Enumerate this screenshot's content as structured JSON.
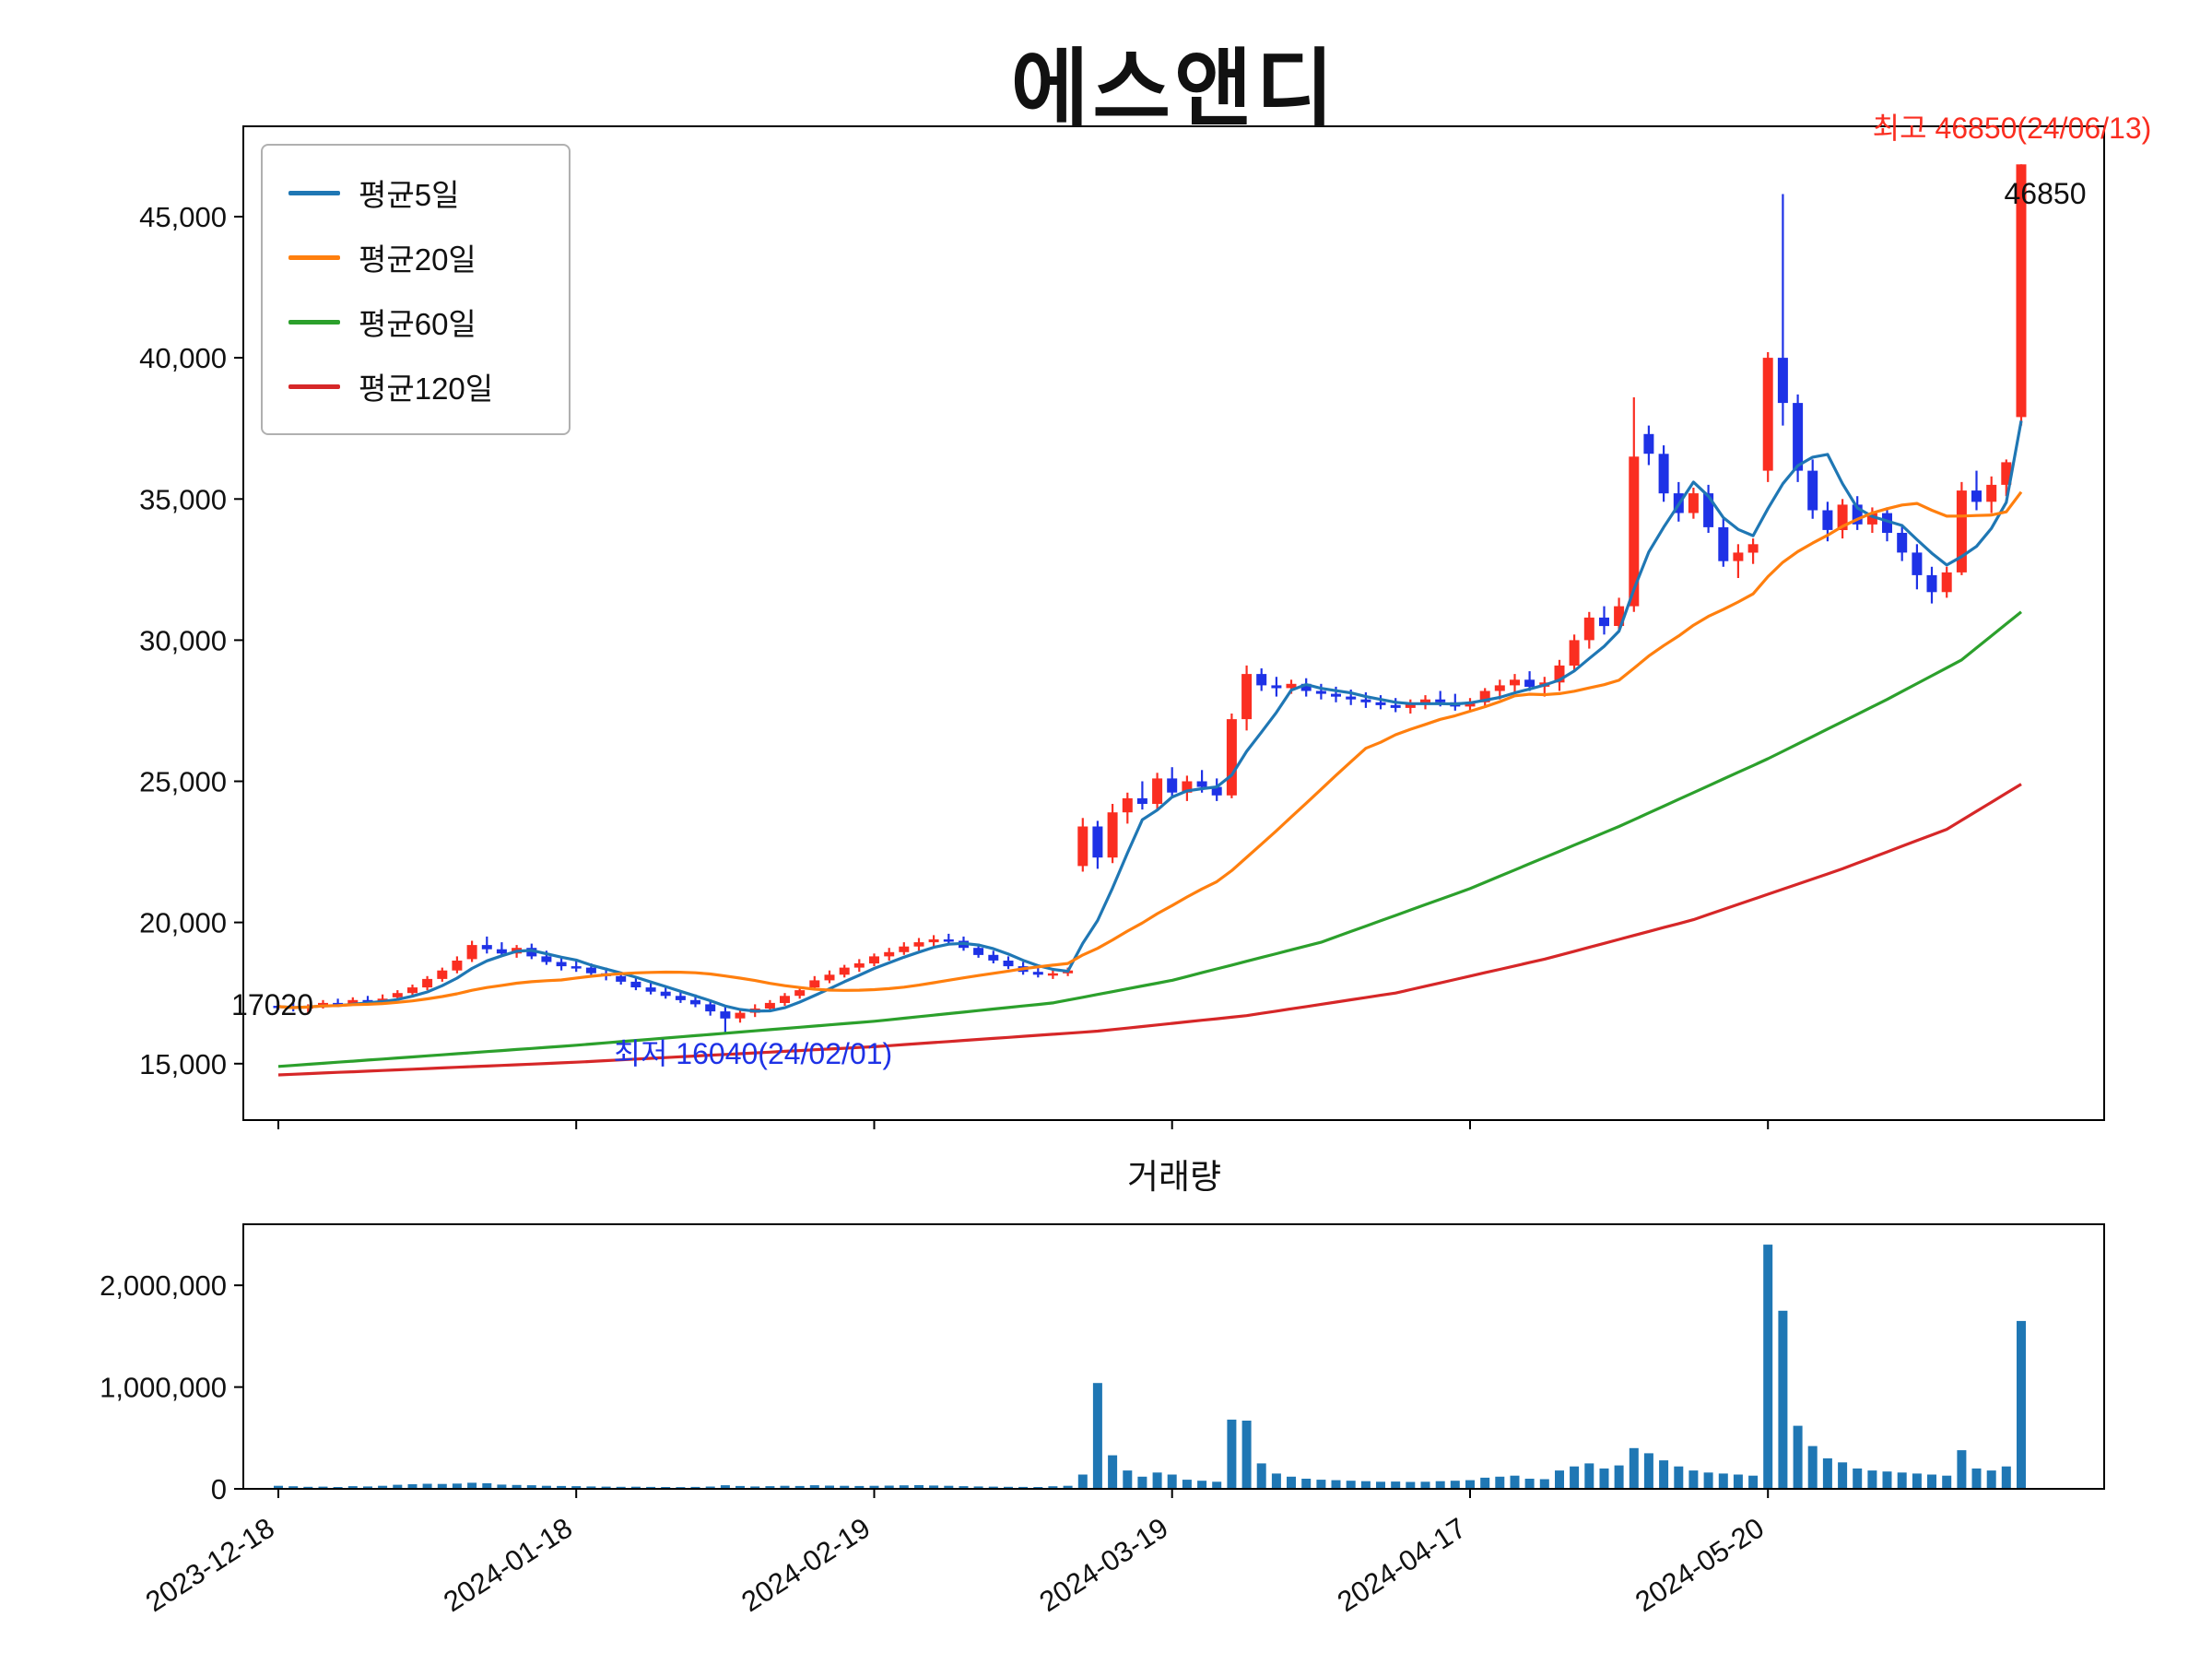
{
  "chart_data": [
    {
      "type": "candlestick",
      "title": "에스앤디",
      "legend_position": "upper-left",
      "grid": false,
      "legend": [
        {
          "label": "평균5일",
          "color": "#1f77b4"
        },
        {
          "label": "평균20일",
          "color": "#ff7f0e"
        },
        {
          "label": "평균60일",
          "color": "#2ca02c"
        },
        {
          "label": "평균120일",
          "color": "#d62728"
        }
      ],
      "colors": {
        "up": "#fa2e21",
        "down": "#1e32e6",
        "axis": "#000000",
        "text": "#111111"
      },
      "y_range": [
        13000,
        48200
      ],
      "y_ticks": [
        {
          "value": 15000,
          "label": "15,000"
        },
        {
          "value": 20000,
          "label": "20,000"
        },
        {
          "value": 25000,
          "label": "25,000"
        },
        {
          "value": 30000,
          "label": "30,000"
        },
        {
          "value": 35000,
          "label": "35,000"
        },
        {
          "value": 40000,
          "label": "40,000"
        },
        {
          "value": 45000,
          "label": "45,000"
        }
      ],
      "x_ticks": [
        {
          "index": 0,
          "label": "2023-12-18"
        },
        {
          "index": 20,
          "label": "2024-01-18"
        },
        {
          "index": 40,
          "label": "2024-02-19"
        },
        {
          "index": 60,
          "label": "2024-03-19"
        },
        {
          "index": 80,
          "label": "2024-04-17"
        },
        {
          "index": 100,
          "label": "2024-05-20"
        }
      ],
      "annotations": {
        "high": {
          "text": "최고  46850(24/06/13)",
          "color": "#fa2e21",
          "index": 117,
          "price": 46850
        },
        "high_value": {
          "text": "46850",
          "color": "#111111",
          "index": 117,
          "price": 46850
        },
        "low": {
          "text": "최저  16040(24/02/01)",
          "color": "#1e32e6",
          "index": 30,
          "price": 16040
        },
        "first": {
          "text": "17020",
          "color": "#111111",
          "index": 0,
          "price": 17020
        }
      },
      "dates": [
        "2023-12-18",
        "2023-12-19",
        "2023-12-20",
        "2023-12-21",
        "2023-12-22",
        "2023-12-26",
        "2023-12-27",
        "2023-12-28",
        "2024-01-02",
        "2024-01-03",
        "2024-01-04",
        "2024-01-05",
        "2024-01-08",
        "2024-01-09",
        "2024-01-10",
        "2024-01-11",
        "2024-01-12",
        "2024-01-15",
        "2024-01-16",
        "2024-01-17",
        "2024-01-18",
        "2024-01-19",
        "2024-01-22",
        "2024-01-23",
        "2024-01-24",
        "2024-01-25",
        "2024-01-26",
        "2024-01-29",
        "2024-01-30",
        "2024-01-31",
        "2024-02-01",
        "2024-02-02",
        "2024-02-05",
        "2024-02-06",
        "2024-02-07",
        "2024-02-08",
        "2024-02-13",
        "2024-02-14",
        "2024-02-15",
        "2024-02-16",
        "2024-02-19",
        "2024-02-20",
        "2024-02-21",
        "2024-02-22",
        "2024-02-23",
        "2024-02-26",
        "2024-02-27",
        "2024-02-28",
        "2024-02-29",
        "2024-03-04",
        "2024-03-05",
        "2024-03-06",
        "2024-03-07",
        "2024-03-08",
        "2024-03-11",
        "2024-03-12",
        "2024-03-13",
        "2024-03-14",
        "2024-03-15",
        "2024-03-18",
        "2024-03-19",
        "2024-03-20",
        "2024-03-21",
        "2024-03-22",
        "2024-03-25",
        "2024-03-26",
        "2024-03-27",
        "2024-03-28",
        "2024-03-29",
        "2024-04-01",
        "2024-04-02",
        "2024-04-03",
        "2024-04-04",
        "2024-04-05",
        "2024-04-08",
        "2024-04-09",
        "2024-04-11",
        "2024-04-12",
        "2024-04-15",
        "2024-04-16",
        "2024-04-17",
        "2024-04-18",
        "2024-04-19",
        "2024-04-22",
        "2024-04-23",
        "2024-04-24",
        "2024-04-25",
        "2024-04-26",
        "2024-04-29",
        "2024-04-30",
        "2024-05-02",
        "2024-05-03",
        "2024-05-07",
        "2024-05-08",
        "2024-05-09",
        "2024-05-10",
        "2024-05-13",
        "2024-05-14",
        "2024-05-16",
        "2024-05-17",
        "2024-05-20",
        "2024-05-21",
        "2024-05-22",
        "2024-05-23",
        "2024-05-24",
        "2024-05-27",
        "2024-05-28",
        "2024-05-29",
        "2024-05-30",
        "2024-05-31",
        "2024-06-03",
        "2024-06-04",
        "2024-06-05",
        "2024-06-07",
        "2024-06-10",
        "2024-06-11",
        "2024-06-12",
        "2024-06-13"
      ],
      "ohlc": [
        [
          17050,
          17200,
          16900,
          17020
        ],
        [
          17020,
          17150,
          16850,
          16950
        ],
        [
          16950,
          17100,
          16800,
          17050
        ],
        [
          17050,
          17250,
          16950,
          17150
        ],
        [
          17150,
          17300,
          17000,
          17100
        ],
        [
          17100,
          17350,
          17050,
          17250
        ],
        [
          17250,
          17400,
          17100,
          17200
        ],
        [
          17200,
          17450,
          17150,
          17300
        ],
        [
          17350,
          17600,
          17250,
          17500
        ],
        [
          17500,
          17800,
          17400,
          17700
        ],
        [
          17700,
          18100,
          17600,
          18000
        ],
        [
          18000,
          18400,
          17900,
          18300
        ],
        [
          18300,
          18800,
          18200,
          18650
        ],
        [
          18700,
          19350,
          18600,
          19200
        ],
        [
          19200,
          19500,
          18900,
          19050
        ],
        [
          19050,
          19300,
          18800,
          18900
        ],
        [
          18900,
          19200,
          18750,
          19100
        ],
        [
          19100,
          19250,
          18700,
          18800
        ],
        [
          18800,
          19000,
          18500,
          18600
        ],
        [
          18600,
          18800,
          18300,
          18450
        ],
        [
          18450,
          18700,
          18250,
          18400
        ],
        [
          18400,
          18550,
          18100,
          18200
        ],
        [
          18200,
          18400,
          17950,
          18100
        ],
        [
          18100,
          18250,
          17800,
          17900
        ],
        [
          17900,
          18050,
          17600,
          17700
        ],
        [
          17700,
          17900,
          17450,
          17550
        ],
        [
          17550,
          17750,
          17300,
          17400
        ],
        [
          17400,
          17600,
          17150,
          17250
        ],
        [
          17250,
          17450,
          17000,
          17100
        ],
        [
          17100,
          17250,
          16700,
          16850
        ],
        [
          16850,
          17000,
          16040,
          16600
        ],
        [
          16600,
          16950,
          16450,
          16800
        ],
        [
          16800,
          17100,
          16650,
          16950
        ],
        [
          16950,
          17250,
          16850,
          17150
        ],
        [
          17150,
          17500,
          17050,
          17400
        ],
        [
          17400,
          17700,
          17300,
          17600
        ],
        [
          17700,
          18100,
          17600,
          17950
        ],
        [
          17950,
          18300,
          17850,
          18150
        ],
        [
          18150,
          18500,
          18050,
          18400
        ],
        [
          18400,
          18700,
          18250,
          18550
        ],
        [
          18550,
          18900,
          18450,
          18800
        ],
        [
          18800,
          19100,
          18650,
          18950
        ],
        [
          18950,
          19300,
          18850,
          19150
        ],
        [
          19150,
          19450,
          19000,
          19300
        ],
        [
          19300,
          19550,
          19150,
          19400
        ],
        [
          19400,
          19600,
          19200,
          19350
        ],
        [
          19350,
          19500,
          19000,
          19100
        ],
        [
          19100,
          19250,
          18750,
          18850
        ],
        [
          18850,
          19000,
          18550,
          18650
        ],
        [
          18650,
          18800,
          18350,
          18450
        ],
        [
          18450,
          18600,
          18150,
          18250
        ],
        [
          18250,
          18450,
          18050,
          18150
        ],
        [
          18150,
          18350,
          18000,
          18200
        ],
        [
          18200,
          18400,
          18100,
          18300
        ],
        [
          22000,
          23700,
          21800,
          23400
        ],
        [
          23400,
          23600,
          21900,
          22300
        ],
        [
          22300,
          24200,
          22100,
          23900
        ],
        [
          23900,
          24600,
          23500,
          24400
        ],
        [
          24400,
          25000,
          24000,
          24200
        ],
        [
          24200,
          25300,
          24000,
          25100
        ],
        [
          25100,
          25500,
          24400,
          24600
        ],
        [
          24600,
          25200,
          24300,
          25000
        ],
        [
          25000,
          25400,
          24600,
          24800
        ],
        [
          24800,
          25100,
          24300,
          24500
        ],
        [
          24500,
          27400,
          24400,
          27200
        ],
        [
          27200,
          29100,
          26800,
          28800
        ],
        [
          28800,
          29000,
          28200,
          28400
        ],
        [
          28400,
          28700,
          28000,
          28300
        ],
        [
          28300,
          28600,
          28100,
          28450
        ],
        [
          28450,
          28650,
          28000,
          28200
        ],
        [
          28200,
          28450,
          27900,
          28100
        ],
        [
          28100,
          28350,
          27800,
          28000
        ],
        [
          28000,
          28250,
          27700,
          27900
        ],
        [
          27900,
          28150,
          27600,
          27800
        ],
        [
          27800,
          28050,
          27550,
          27700
        ],
        [
          27700,
          27950,
          27450,
          27600
        ],
        [
          27600,
          27900,
          27400,
          27750
        ],
        [
          27750,
          28050,
          27550,
          27900
        ],
        [
          27900,
          28200,
          27650,
          27800
        ],
        [
          27800,
          28100,
          27500,
          27650
        ],
        [
          27650,
          27950,
          27450,
          27800
        ],
        [
          27800,
          28300,
          27600,
          28200
        ],
        [
          28200,
          28600,
          27900,
          28400
        ],
        [
          28400,
          28800,
          28100,
          28600
        ],
        [
          28600,
          28900,
          28200,
          28350
        ],
        [
          28350,
          28700,
          28000,
          28500
        ],
        [
          28500,
          29300,
          28200,
          29100
        ],
        [
          29100,
          30200,
          28900,
          30000
        ],
        [
          30000,
          31000,
          29700,
          30800
        ],
        [
          30800,
          31200,
          30200,
          30500
        ],
        [
          30500,
          31500,
          30300,
          31200
        ],
        [
          31200,
          38600,
          31000,
          36500
        ],
        [
          37300,
          37600,
          36200,
          36600
        ],
        [
          36600,
          36900,
          34900,
          35200
        ],
        [
          35200,
          35600,
          34200,
          34500
        ],
        [
          34500,
          35400,
          34300,
          35200
        ],
        [
          35200,
          35500,
          33800,
          34000
        ],
        [
          34000,
          34300,
          32600,
          32800
        ],
        [
          32800,
          33400,
          32200,
          33100
        ],
        [
          33100,
          33600,
          32700,
          33400
        ],
        [
          36000,
          40200,
          35600,
          40000
        ],
        [
          40000,
          45800,
          37600,
          38400
        ],
        [
          38400,
          38700,
          35600,
          36000
        ],
        [
          36000,
          36400,
          34300,
          34600
        ],
        [
          34600,
          34900,
          33500,
          33900
        ],
        [
          33900,
          35000,
          33600,
          34800
        ],
        [
          34800,
          35100,
          33900,
          34100
        ],
        [
          34100,
          34700,
          33800,
          34500
        ],
        [
          34500,
          34700,
          33500,
          33800
        ],
        [
          33800,
          34100,
          32800,
          33100
        ],
        [
          33100,
          33400,
          31800,
          32300
        ],
        [
          32300,
          32600,
          31300,
          31700
        ],
        [
          31700,
          32600,
          31500,
          32400
        ],
        [
          32400,
          35600,
          32300,
          35300
        ],
        [
          35300,
          36000,
          34600,
          34900
        ],
        [
          34900,
          35800,
          34500,
          35500
        ],
        [
          35500,
          36400,
          35100,
          36300
        ],
        [
          37900,
          46850,
          37600,
          46850
        ]
      ],
      "ma60_keypoints": [
        [
          0,
          14900
        ],
        [
          20,
          15650
        ],
        [
          40,
          16500
        ],
        [
          52,
          17150
        ],
        [
          60,
          17950
        ],
        [
          70,
          19300
        ],
        [
          80,
          21200
        ],
        [
          90,
          23400
        ],
        [
          100,
          25800
        ],
        [
          108,
          27900
        ],
        [
          113,
          29300
        ],
        [
          117,
          31000
        ]
      ],
      "ma120_keypoints": [
        [
          0,
          14600
        ],
        [
          20,
          15050
        ],
        [
          40,
          15600
        ],
        [
          55,
          16150
        ],
        [
          65,
          16700
        ],
        [
          75,
          17500
        ],
        [
          85,
          18700
        ],
        [
          95,
          20100
        ],
        [
          105,
          21900
        ],
        [
          112,
          23300
        ],
        [
          117,
          24900
        ]
      ]
    },
    {
      "type": "bar",
      "title": "거래량",
      "color": "#1f77b4",
      "y_range": [
        0,
        2600000
      ],
      "y_ticks": [
        {
          "value": 0,
          "label": "0"
        },
        {
          "value": 1000000,
          "label": "1,000,000"
        },
        {
          "value": 2000000,
          "label": "2,000,000"
        }
      ],
      "values": [
        30000,
        25000,
        20000,
        22000,
        18000,
        26000,
        24000,
        30000,
        40000,
        45000,
        50000,
        48000,
        52000,
        60000,
        55000,
        42000,
        38000,
        35000,
        30000,
        28000,
        26000,
        24000,
        22000,
        20000,
        21000,
        19000,
        18000,
        17000,
        19000,
        23000,
        35000,
        28000,
        24000,
        26000,
        30000,
        28000,
        35000,
        32000,
        30000,
        28000,
        30000,
        32000,
        34000,
        36000,
        33000,
        30000,
        26000,
        24000,
        22000,
        20000,
        19000,
        18000,
        25000,
        30000,
        140000,
        1040000,
        330000,
        180000,
        120000,
        160000,
        140000,
        90000,
        80000,
        70000,
        680000,
        670000,
        250000,
        150000,
        120000,
        100000,
        90000,
        85000,
        80000,
        75000,
        70000,
        72000,
        68000,
        70000,
        75000,
        80000,
        85000,
        110000,
        120000,
        130000,
        100000,
        95000,
        180000,
        220000,
        250000,
        200000,
        230000,
        400000,
        350000,
        280000,
        220000,
        180000,
        160000,
        150000,
        140000,
        130000,
        2400000,
        1750000,
        620000,
        420000,
        300000,
        260000,
        200000,
        180000,
        170000,
        160000,
        150000,
        140000,
        130000,
        380000,
        200000,
        180000,
        220000,
        1650000
      ]
    }
  ]
}
